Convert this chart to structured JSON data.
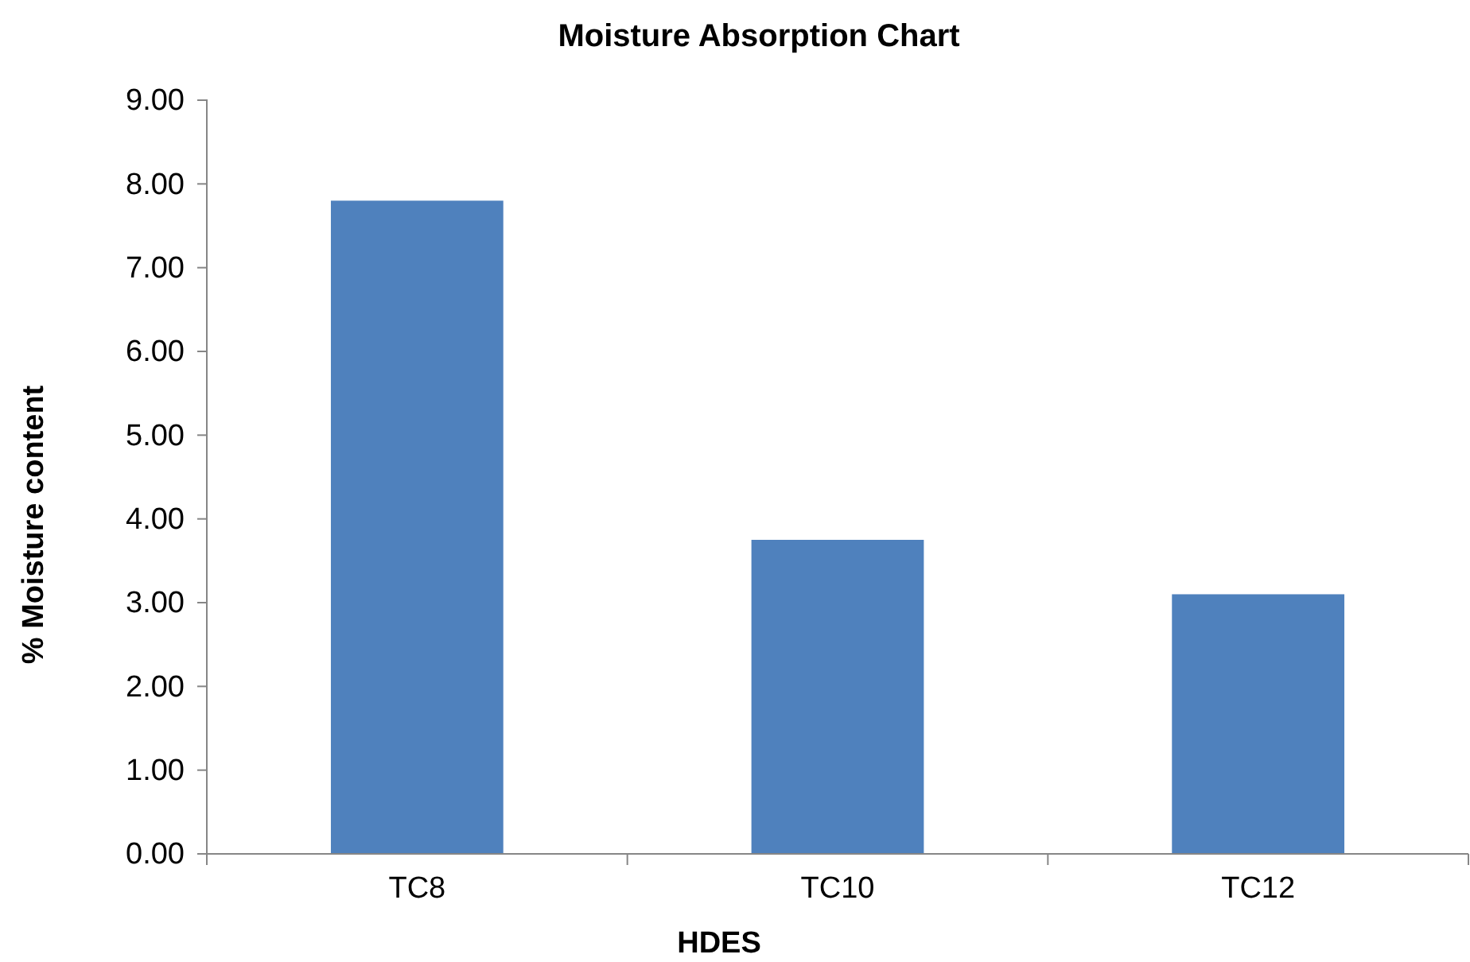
{
  "chart_data": {
    "type": "bar",
    "title": "Moisture Absorption Chart",
    "xlabel": "HDES",
    "ylabel": "% Moisture content",
    "categories": [
      "TC8",
      "TC10",
      "TC12"
    ],
    "values": [
      7.8,
      3.75,
      3.1
    ],
    "color": "#4f81bd",
    "ylim": [
      0,
      9
    ],
    "yticks": [
      {
        "value": 0,
        "label": "0.00"
      },
      {
        "value": 1,
        "label": "1.00"
      },
      {
        "value": 2,
        "label": "2.00"
      },
      {
        "value": 3,
        "label": "3.00"
      },
      {
        "value": 4,
        "label": "4.00"
      },
      {
        "value": 5,
        "label": "5.00"
      },
      {
        "value": 6,
        "label": "6.00"
      },
      {
        "value": 7,
        "label": "7.00"
      },
      {
        "value": 8,
        "label": "8.00"
      },
      {
        "value": 9,
        "label": "9.00"
      }
    ],
    "grid": false
  }
}
